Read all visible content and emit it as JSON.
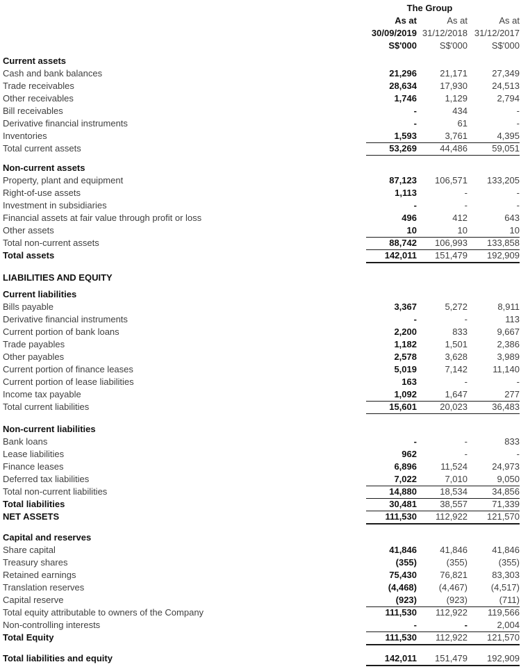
{
  "colors": {
    "background": "#ffffff",
    "text": "#3f3f3f",
    "emphasis_text": "#111111",
    "rule": "#1a1a1a"
  },
  "header": {
    "group_title": "The Group",
    "columns": [
      {
        "as_at_label": "As at",
        "date": "30/09/2019",
        "currency_unit": "S$'000",
        "emphasis": true
      },
      {
        "as_at_label": "As at",
        "date": "31/12/2018",
        "currency_unit": "S$'000",
        "emphasis": false
      },
      {
        "as_at_label": "As at",
        "date": "31/12/2017",
        "currency_unit": "S$'000",
        "emphasis": false
      }
    ]
  },
  "sections": [
    {
      "title": "Current assets",
      "rows": [
        {
          "label": "Cash and bank balances",
          "values": [
            "21,296",
            "21,171",
            "27,349"
          ]
        },
        {
          "label": "Trade receivables",
          "values": [
            "28,634",
            "17,930",
            "24,513"
          ]
        },
        {
          "label": "Other receivables",
          "values": [
            "1,746",
            "1,129",
            "2,794"
          ]
        },
        {
          "label": "Bill receivables",
          "values": [
            "-",
            "434",
            "-"
          ]
        },
        {
          "label": "Derivative financial instruments",
          "values": [
            "-",
            "61",
            "-"
          ]
        },
        {
          "label": "Inventories",
          "values": [
            "1,593",
            "3,761",
            "4,395"
          ]
        },
        {
          "label": "Total current assets",
          "values": [
            "53,269",
            "44,486",
            "59,051"
          ],
          "rules": "tb"
        }
      ]
    },
    {
      "title": "Non-current assets",
      "rows": [
        {
          "label": "Property, plant and equipment",
          "values": [
            "87,123",
            "106,571",
            "133,205"
          ]
        },
        {
          "label": "Right-of-use assets",
          "values": [
            "1,113",
            "-",
            "-"
          ]
        },
        {
          "label": "Investment in subsidiaries",
          "values": [
            "-",
            "-",
            "-"
          ]
        },
        {
          "label": "Financial assets at fair value through profit or loss",
          "values": [
            "496",
            "412",
            "643"
          ]
        },
        {
          "label": "Other assets",
          "values": [
            "10",
            "10",
            "10"
          ]
        },
        {
          "label": "Total non-current assets",
          "values": [
            "88,742",
            "106,993",
            "133,858"
          ],
          "rules": "tb"
        },
        {
          "label": "Total assets",
          "values": [
            "142,011",
            "151,479",
            "192,909"
          ],
          "rules": "k",
          "bold_label": true
        }
      ]
    },
    {
      "title": "LIABILITIES AND EQUITY",
      "rows": []
    },
    {
      "title": "Current liabilities",
      "rows": [
        {
          "label": "Bills payable",
          "values": [
            "3,367",
            "5,272",
            "8,911"
          ]
        },
        {
          "label": "Derivative financial instruments",
          "values": [
            "-",
            "-",
            "113"
          ]
        },
        {
          "label": "Current portion of bank loans",
          "values": [
            "2,200",
            "833",
            "9,667"
          ]
        },
        {
          "label": "Trade payables",
          "values": [
            "1,182",
            "1,501",
            "2,386"
          ]
        },
        {
          "label": "Other payables",
          "values": [
            "2,578",
            "3,628",
            "3,989"
          ]
        },
        {
          "label": "Current portion of finance leases",
          "values": [
            "5,019",
            "7,142",
            "11,140"
          ]
        },
        {
          "label": "Current portion of lease liabilities",
          "values": [
            "163",
            "-",
            "-"
          ]
        },
        {
          "label": "Income tax payable",
          "values": [
            "1,092",
            "1,647",
            "277"
          ]
        },
        {
          "label": "Total current liabilities",
          "values": [
            "15,601",
            "20,023",
            "36,483"
          ],
          "rules": "tb"
        }
      ]
    },
    {
      "title": "Non-current liabilities",
      "rows": [
        {
          "label": "Bank loans",
          "values": [
            "-",
            "-",
            "833"
          ]
        },
        {
          "label": "Lease liabilities",
          "values": [
            "962",
            "-",
            "-"
          ]
        },
        {
          "label": "Finance leases",
          "values": [
            "6,896",
            "11,524",
            "24,973"
          ]
        },
        {
          "label": "Deferred tax liabilities",
          "values": [
            "7,022",
            "7,010",
            "9,050"
          ]
        },
        {
          "label": "Total non-current liabilities",
          "values": [
            "14,880",
            "18,534",
            "34,856"
          ],
          "rules": "tb"
        },
        {
          "label": "Total liabilities",
          "values": [
            "30,481",
            "38,557",
            "71,339"
          ],
          "rules": "b",
          "bold_label": true
        },
        {
          "label": "NET ASSETS",
          "values": [
            "111,530",
            "112,922",
            "121,570"
          ],
          "rules": "k",
          "bold_label": true
        }
      ]
    },
    {
      "title": "Capital and reserves",
      "rows": [
        {
          "label": "Share capital",
          "values": [
            "41,846",
            "41,846",
            "41,846"
          ]
        },
        {
          "label": "Treasury shares",
          "values": [
            "(355)",
            "(355)",
            "(355)"
          ]
        },
        {
          "label": "Retained earnings",
          "values": [
            "75,430",
            "76,821",
            "83,303"
          ]
        },
        {
          "label": "Translation reserves",
          "values": [
            "(4,468)",
            "(4,467)",
            "(4,517)"
          ]
        },
        {
          "label": "Capital reserve",
          "values": [
            "(923)",
            "(923)",
            "(711)"
          ]
        },
        {
          "label": "Total equity attributable to owners of the Company",
          "values": [
            "111,530",
            "112,922",
            "119,566"
          ],
          "rules": "t"
        },
        {
          "label": "Non-controlling interests",
          "values": [
            "-",
            "-",
            "2,004"
          ],
          "rules": "b",
          "bold_value2": true
        },
        {
          "label": "Total Equity",
          "values": [
            "111,530",
            "112,922",
            "121,570"
          ],
          "rules": "k",
          "bold_label": true
        }
      ]
    },
    {
      "title": "",
      "rows": [
        {
          "label": "Total liabilities and equity",
          "values": [
            "142,011",
            "151,479",
            "192,909"
          ],
          "rules": "k",
          "bold_label": true
        }
      ]
    }
  ]
}
